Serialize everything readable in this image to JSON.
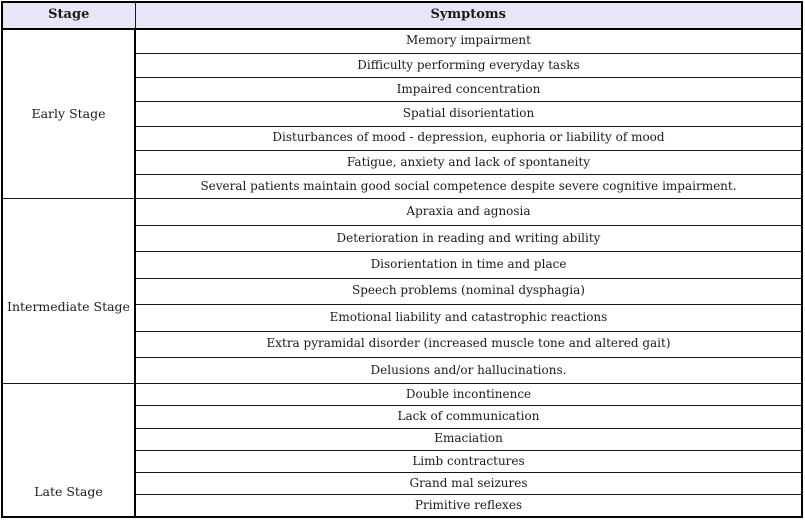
{
  "table": {
    "headers": [
      "Stage",
      "Symptoms"
    ],
    "sections": [
      {
        "stage": "Early Stage",
        "symptoms": [
          "Memory impairment",
          "Difficulty performing everyday tasks",
          "Impaired concentration",
          "Spatial disorientation",
          "Disturbances of mood - depression, euphoria or liability of mood",
          "Fatigue, anxiety and lack of spontaneity",
          "Several patients maintain good social competence despite severe cognitive impairment."
        ]
      },
      {
        "stage": "Intermediate Stage",
        "symptoms": [
          "Apraxia and agnosia",
          "Deterioration in reading and writing ability",
          "Disorientation in time and place",
          "Speech problems (nominal dysphagia)",
          "Emotional liability and catastrophic reactions",
          "Extra pyramidal disorder (increased muscle tone and altered gait)",
          "Delusions and/or hallucinations."
        ]
      },
      {
        "stage": "Late Stage",
        "symptoms": [
          "Double incontinence",
          "Lack of communication",
          "Emaciation",
          "Limb contractures",
          "Grand mal seizures",
          "Primitive reflexes"
        ]
      }
    ],
    "colors": {
      "header_background": "#e6e6f7",
      "border": "#1a1a1a",
      "outer_border": "#000000",
      "text": "#1a1a1f",
      "row_background": "#ffffff"
    }
  }
}
